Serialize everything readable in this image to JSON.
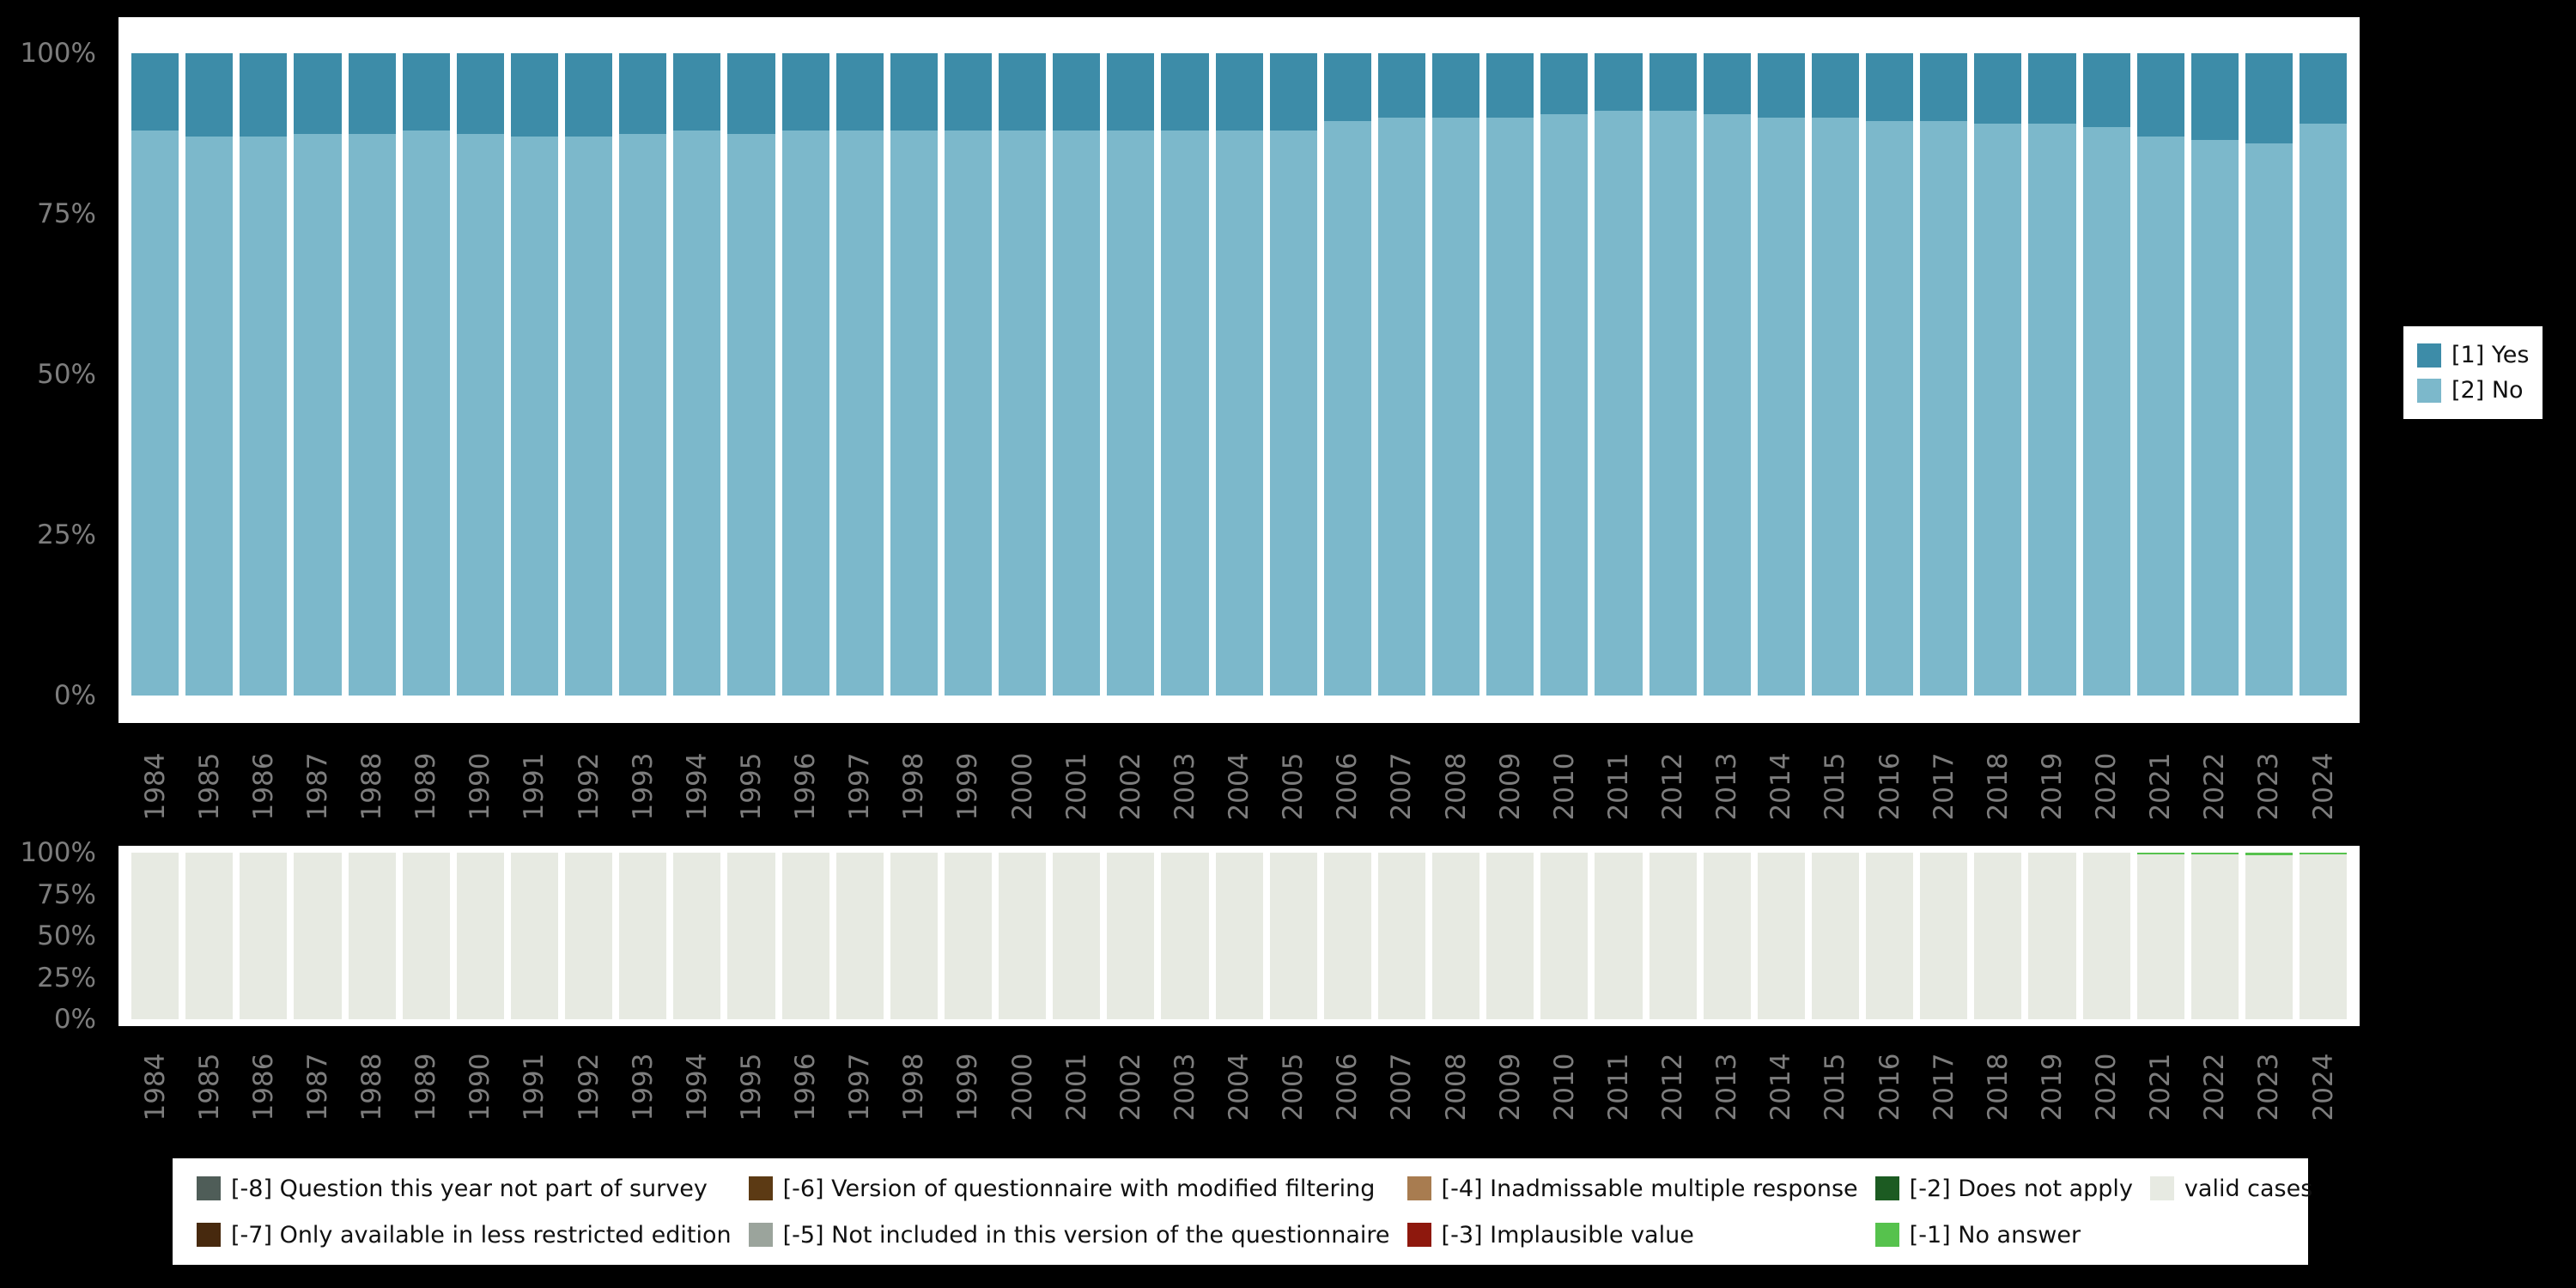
{
  "colors": {
    "background": "#000000",
    "panel": "#ffffff",
    "yes": "#3d8ca8",
    "no": "#7cb8cb",
    "valid": "#e7eae2",
    "no_answer": "#56c24d",
    "does_not_apply": "#1c5b22",
    "implausible": "#8e180d",
    "inadmissable": "#a87c50",
    "not_included": "#9ba49c",
    "modified_filtering": "#5c3a14",
    "less_restricted": "#47290e",
    "not_part_of_survey": "#4f5d58",
    "axis_text": "#7d7d7d"
  },
  "chart_data": [
    {
      "type": "bar",
      "stacked": true,
      "title": "",
      "xlabel": "",
      "ylabel": "",
      "ylim": [
        0,
        100
      ],
      "grid": false,
      "legend_position": "right",
      "x": [
        "1984",
        "1985",
        "1986",
        "1987",
        "1988",
        "1989",
        "1990",
        "1991",
        "1992",
        "1993",
        "1994",
        "1995",
        "1996",
        "1997",
        "1998",
        "1999",
        "2000",
        "2001",
        "2002",
        "2003",
        "2004",
        "2005",
        "2006",
        "2007",
        "2008",
        "2009",
        "2010",
        "2011",
        "2012",
        "2013",
        "2014",
        "2015",
        "2016",
        "2017",
        "2018",
        "2019",
        "2020",
        "2021",
        "2022",
        "2023",
        "2024"
      ],
      "yticks": [
        {
          "label": "0%",
          "value": 0
        },
        {
          "label": "25%",
          "value": 25
        },
        {
          "label": "50%",
          "value": 50
        },
        {
          "label": "75%",
          "value": 75
        },
        {
          "label": "100%",
          "value": 100
        }
      ],
      "series": [
        {
          "name": "[1] Yes",
          "color_key": "yes",
          "values": [
            12,
            13,
            13,
            12.5,
            12.5,
            12,
            12.5,
            13,
            13,
            12.5,
            12,
            12.5,
            12,
            12,
            12,
            12,
            12,
            12,
            12,
            12,
            12,
            12,
            10.5,
            10,
            10,
            10,
            9.5,
            9,
            9,
            9.5,
            10,
            10,
            10.5,
            10.5,
            11,
            11,
            11.5,
            13,
            13.5,
            14,
            11
          ]
        },
        {
          "name": "[2] No",
          "color_key": "no",
          "values": [
            88,
            87,
            87,
            87.5,
            87.5,
            88,
            87.5,
            87,
            87,
            87.5,
            88,
            87.5,
            88,
            88,
            88,
            88,
            88,
            88,
            88,
            88,
            88,
            88,
            89.5,
            90,
            90,
            90,
            90.5,
            91,
            91,
            90.5,
            90,
            90,
            89.5,
            89.5,
            89,
            89,
            88.5,
            87,
            86.5,
            86,
            89
          ]
        }
      ]
    },
    {
      "type": "bar",
      "stacked": true,
      "title": "",
      "xlabel": "",
      "ylabel": "",
      "ylim": [
        0,
        100
      ],
      "grid": false,
      "legend_position": "bottom",
      "x": [
        "1984",
        "1985",
        "1986",
        "1987",
        "1988",
        "1989",
        "1990",
        "1991",
        "1992",
        "1993",
        "1994",
        "1995",
        "1996",
        "1997",
        "1998",
        "1999",
        "2000",
        "2001",
        "2002",
        "2003",
        "2004",
        "2005",
        "2006",
        "2007",
        "2008",
        "2009",
        "2010",
        "2011",
        "2012",
        "2013",
        "2014",
        "2015",
        "2016",
        "2017",
        "2018",
        "2019",
        "2020",
        "2021",
        "2022",
        "2023",
        "2024"
      ],
      "yticks": [
        {
          "label": "0%",
          "value": 0
        },
        {
          "label": "25%",
          "value": 25
        },
        {
          "label": "50%",
          "value": 50
        },
        {
          "label": "75%",
          "value": 75
        },
        {
          "label": "100%",
          "value": 100
        }
      ],
      "series": [
        {
          "name": "[-1] No answer",
          "color_key": "no_answer",
          "values": [
            0,
            0,
            0,
            0,
            0,
            0,
            0,
            0,
            0,
            0,
            0,
            0,
            0,
            0,
            0,
            0,
            0,
            0,
            0,
            0,
            0,
            0,
            0,
            0,
            0,
            0,
            0,
            0,
            0,
            0,
            0,
            0,
            0,
            0,
            0,
            0,
            0,
            1,
            1,
            1.5,
            1
          ]
        },
        {
          "name": "valid cases",
          "color_key": "valid",
          "values": [
            100,
            100,
            100,
            100,
            100,
            100,
            100,
            100,
            100,
            100,
            100,
            100,
            100,
            100,
            100,
            100,
            100,
            100,
            100,
            100,
            100,
            100,
            100,
            100,
            100,
            100,
            100,
            100,
            100,
            100,
            100,
            100,
            100,
            100,
            100,
            100,
            100,
            99,
            99,
            98.5,
            99
          ]
        }
      ]
    }
  ],
  "legend_main": {
    "items": [
      {
        "label": "[1] Yes",
        "color_key": "yes"
      },
      {
        "label": "[2] No",
        "color_key": "no"
      }
    ]
  },
  "legend_missing": {
    "items": [
      {
        "label": "[-8] Question this year not part of survey",
        "color_key": "not_part_of_survey"
      },
      {
        "label": "[-7] Only available in less restricted edition",
        "color_key": "less_restricted"
      },
      {
        "label": "[-6] Version of questionnaire with modified filtering",
        "color_key": "modified_filtering"
      },
      {
        "label": "[-5] Not included in this version of the questionnaire",
        "color_key": "not_included"
      },
      {
        "label": "[-4] Inadmissable multiple response",
        "color_key": "inadmissable"
      },
      {
        "label": "[-3] Implausible value",
        "color_key": "implausible"
      },
      {
        "label": "[-2] Does not apply",
        "color_key": "does_not_apply"
      },
      {
        "label": "[-1] No answer",
        "color_key": "no_answer"
      },
      {
        "label": "valid cases",
        "color_key": "valid"
      }
    ]
  }
}
